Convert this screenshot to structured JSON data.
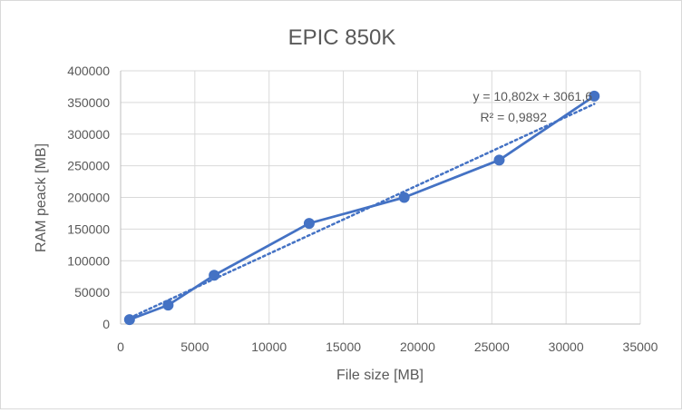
{
  "chart_data": {
    "type": "scatter",
    "title": "EPIC 850K",
    "xlabel": "File size [MB]",
    "ylabel": "RAM peack [MB]",
    "xlim": [
      0,
      35000
    ],
    "ylim": [
      0,
      400000
    ],
    "x_ticks": [
      0,
      5000,
      10000,
      15000,
      20000,
      25000,
      30000,
      35000
    ],
    "y_ticks": [
      0,
      50000,
      100000,
      150000,
      200000,
      250000,
      300000,
      350000,
      400000
    ],
    "x_tick_labels": [
      "0",
      "5000",
      "10000",
      "15000",
      "20000",
      "25000",
      "30000",
      "35000"
    ],
    "y_tick_labels": [
      "0",
      "50000",
      "100000",
      "150000",
      "200000",
      "250000",
      "300000",
      "350000",
      "400000"
    ],
    "grid": true,
    "series": [
      {
        "x": [
          600,
          3200,
          6300,
          12700,
          19100,
          25500,
          31900
        ],
        "y": [
          7000,
          30000,
          77000,
          159000,
          200000,
          259000,
          360000
        ],
        "color": "#4472c4",
        "markers": true,
        "line": "solid"
      }
    ],
    "trendline": {
      "type": "linear",
      "slope": 10.802,
      "intercept": 3061.6,
      "x_range": [
        600,
        31900
      ],
      "color": "#4472c4",
      "line": "dotted",
      "equation_label": "y = 10,802x + 3061,6",
      "r2_label": "R² = 0,9892"
    }
  }
}
